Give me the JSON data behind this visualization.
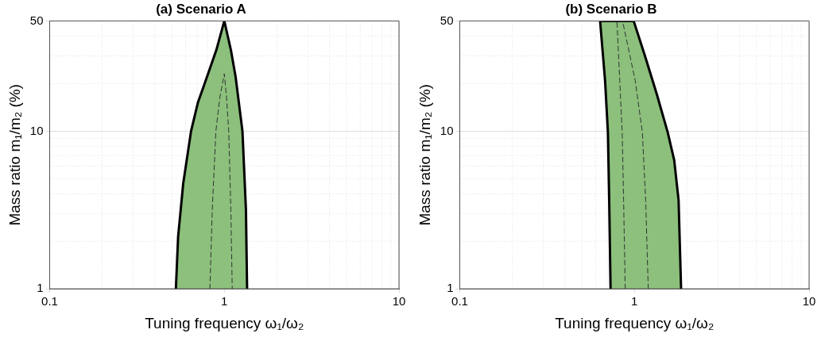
{
  "chart_data": [
    {
      "type": "line",
      "title": "(a) Scenario A",
      "xlabel": "Tuning frequency ω₁/ω₂",
      "ylabel": "Mass ratio m₁/m₂ (%)",
      "log": "xy",
      "grid": true,
      "legend": false,
      "marker": "none",
      "xlim": [
        0.1,
        10
      ],
      "xticks": [
        0.1,
        1,
        10
      ],
      "ylim": [
        1,
        50
      ],
      "yticks": [
        1,
        10,
        50
      ],
      "series": [
        {
          "type": "area",
          "color": "#8cc07c",
          "x": [
            0.528,
            0.544,
            0.582,
            0.645,
            0.705,
            0.797,
            0.901,
            1,
            1.09,
            1.16,
            1.27,
            1.33,
            1.35
          ],
          "values": [
            1,
            2.15,
            4.68,
            10,
            15.1,
            22.2,
            32.8,
            50,
            32.8,
            22.2,
            10,
            3.17,
            1
          ]
        },
        {
          "type": "line",
          "color": "#333333",
          "line_style": "dashed",
          "x": [
            0.827,
            0.853,
            0.895,
            0.942,
            1,
            1.03,
            1.06,
            1.09,
            1.11
          ],
          "values": [
            1,
            3.17,
            10,
            16.3,
            23.1,
            16.3,
            10,
            3.17,
            1
          ]
        }
      ]
    },
    {
      "type": "line",
      "title": "(b) Scenario B",
      "xlabel": "Tuning frequency ω₁/ω₂",
      "ylabel": "Mass ratio m₁/m₂ (%)",
      "log": "xy",
      "grid": true,
      "legend": false,
      "marker": "none",
      "xlim": [
        0.1,
        10
      ],
      "xticks": [
        0.1,
        1,
        10
      ],
      "ylim": [
        1,
        50
      ],
      "yticks": [
        1,
        10,
        50
      ],
      "series": [
        {
          "type": "area",
          "color": "#8cc07c",
          "x": [
            0.73,
            0.717,
            0.705,
            0.679,
            0.636,
            0.99,
            1.15,
            1.34,
            1.55,
            1.69,
            1.79,
            1.85
          ],
          "values": [
            1,
            3.65,
            9.85,
            21,
            50,
            50,
            29.9,
            17.3,
            9.85,
            6.54,
            3.65,
            1
          ]
        },
        {
          "type": "line",
          "color": "#333333",
          "line_style": "dashed",
          "x": [
            0.886,
            0.867,
            0.851,
            0.824,
            0.794
          ],
          "values": [
            1,
            3.65,
            9.85,
            21,
            50
          ]
        },
        {
          "type": "line",
          "color": "#333333",
          "line_style": "dashed",
          "x": [
            1.2,
            1.16,
            1.11,
            1.01,
            0.855
          ],
          "values": [
            1,
            3.65,
            9.85,
            21,
            50
          ]
        }
      ]
    }
  ]
}
